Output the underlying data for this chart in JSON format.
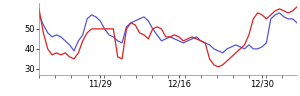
{
  "title": "",
  "xlim": [
    0,
    59
  ],
  "ylim": [
    27,
    63
  ],
  "yticks": [
    30,
    40,
    50
  ],
  "xtick_labels": [
    "11/29",
    "12/16",
    "12/30"
  ],
  "xtick_positions": [
    14,
    32,
    51
  ],
  "blue_line": [
    57,
    52,
    48,
    46,
    47,
    46,
    44,
    42,
    39,
    44,
    47,
    55,
    57,
    56,
    54,
    50,
    47,
    46,
    44,
    43,
    51,
    53,
    54,
    55,
    56,
    54,
    50,
    47,
    44,
    45,
    46,
    45,
    44,
    43,
    44,
    45,
    46,
    44,
    43,
    42,
    40,
    39,
    38,
    40,
    41,
    42,
    41,
    40,
    42,
    40,
    40,
    41,
    43,
    55,
    57,
    58,
    56,
    55,
    55,
    53
  ],
  "red_line": [
    60,
    48,
    40,
    37,
    38,
    37,
    38,
    36,
    35,
    38,
    44,
    48,
    50,
    50,
    50,
    50,
    50,
    50,
    36,
    35,
    50,
    53,
    52,
    48,
    47,
    45,
    50,
    51,
    50,
    46,
    46,
    47,
    46,
    44,
    45,
    46,
    45,
    44,
    43,
    35,
    32,
    31,
    32,
    34,
    36,
    38,
    40,
    42,
    47,
    55,
    58,
    57,
    55,
    57,
    59,
    60,
    59,
    58,
    59,
    61
  ],
  "blue_color": "#5555dd",
  "red_color": "#dd2222",
  "line_width": 0.9,
  "background_color": "#ffffff",
  "tick_fontsize": 6.0
}
